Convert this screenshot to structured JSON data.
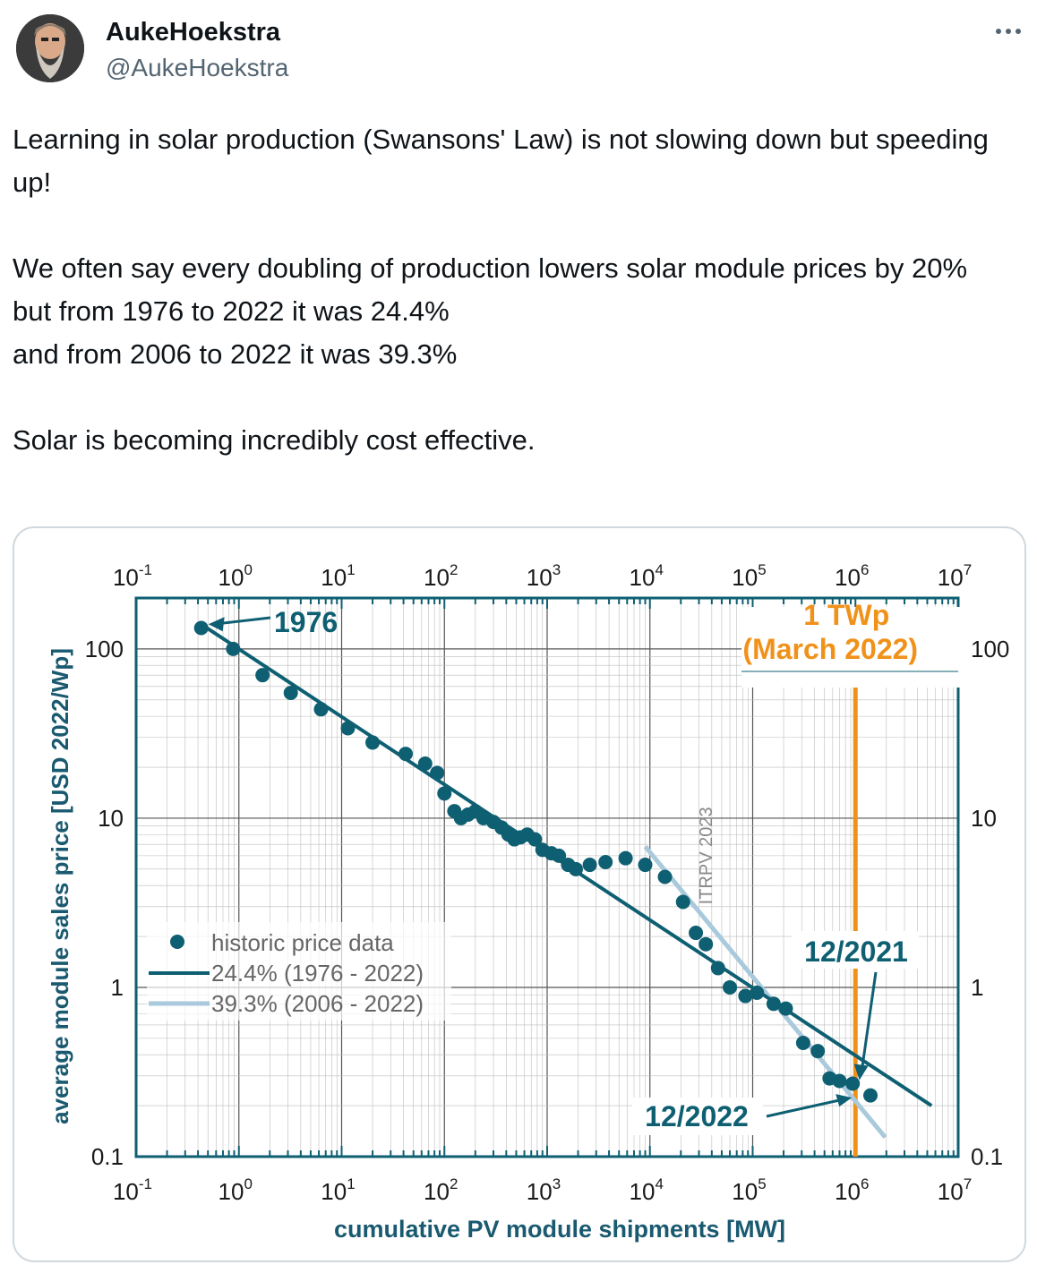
{
  "tweet": {
    "author_name": "AukeHoekstra",
    "author_handle": "@AukeHoekstra",
    "more_icon": "more-horizontal-icon",
    "paragraphs": [
      "Learning in solar production (Swansons' Law) is not slowing down but speeding up!",
      "We often say every doubling of production lowers solar module prices by 20%",
      "but from 1976 to 2022 it was 24.4%",
      "and from 2006 to 2022 it was 39.3%",
      "Solar is becoming incredibly cost effective."
    ]
  },
  "colors": {
    "teal": "#0e5f72",
    "light_blue": "#a9c9dc",
    "orange": "#f0921a",
    "grid": "#bdbdbd",
    "axis_text": "#1a5a70"
  },
  "chart_data": {
    "type": "scatter",
    "xscale": "log",
    "yscale": "log",
    "xlim": [
      0.1,
      10000000
    ],
    "ylim": [
      0.1,
      200
    ],
    "xlabel": "cumulative PV module shipments [MW]",
    "ylabel": "average module sales price [USD 2022/Wp]",
    "x_tick_labels": [
      {
        "base": "10",
        "exp": "-1"
      },
      {
        "base": "10",
        "exp": "0"
      },
      {
        "base": "10",
        "exp": "1"
      },
      {
        "base": "10",
        "exp": "2"
      },
      {
        "base": "10",
        "exp": "3"
      },
      {
        "base": "10",
        "exp": "4"
      },
      {
        "base": "10",
        "exp": "5"
      },
      {
        "base": "10",
        "exp": "6"
      },
      {
        "base": "10",
        "exp": "7"
      }
    ],
    "y_tick_labels": [
      "100",
      "10",
      "1",
      "0.1"
    ],
    "watermark": "ITRPV 2023",
    "legend": [
      {
        "label": "historic price data",
        "kind": "marker"
      },
      {
        "label": "24.4% (1976 - 2022)",
        "kind": "line"
      },
      {
        "label": "39.3% (2006 - 2022)",
        "kind": "line-light"
      }
    ],
    "series": [
      {
        "name": "historic price data",
        "points": [
          [
            0.43,
            133
          ],
          [
            0.88,
            100
          ],
          [
            1.7,
            70
          ],
          [
            3.2,
            55
          ],
          [
            6.3,
            44
          ],
          [
            11.5,
            34
          ],
          [
            20,
            28
          ],
          [
            42,
            24
          ],
          [
            65,
            21
          ],
          [
            85,
            18.5
          ],
          [
            100,
            14
          ],
          [
            125,
            11
          ],
          [
            145,
            10
          ],
          [
            170,
            10.5
          ],
          [
            200,
            11
          ],
          [
            240,
            10
          ],
          [
            300,
            9.5
          ],
          [
            360,
            8.8
          ],
          [
            420,
            8
          ],
          [
            480,
            7.5
          ],
          [
            550,
            7.7
          ],
          [
            640,
            8
          ],
          [
            760,
            7.5
          ],
          [
            900,
            6.5
          ],
          [
            1100,
            6.2
          ],
          [
            1300,
            6
          ],
          [
            1600,
            5.3
          ],
          [
            1900,
            5
          ],
          [
            2600,
            5.3
          ],
          [
            3700,
            5.5
          ],
          [
            5800,
            5.8
          ],
          [
            9000,
            5.3
          ],
          [
            14000,
            4.5
          ],
          [
            21000,
            3.2
          ],
          [
            28000,
            2.1
          ],
          [
            35000,
            1.8
          ],
          [
            46000,
            1.3
          ],
          [
            60000,
            1.0
          ],
          [
            85000,
            0.89
          ],
          [
            110000,
            0.93
          ],
          [
            160000,
            0.8
          ],
          [
            210000,
            0.75
          ],
          [
            310000,
            0.47
          ],
          [
            430000,
            0.42
          ],
          [
            560000,
            0.29
          ],
          [
            700000,
            0.28
          ],
          [
            940000,
            0.27
          ],
          [
            1400000,
            0.23
          ]
        ]
      },
      {
        "name": "24.4% (1976 - 2022)",
        "points": [
          [
            0.43,
            140
          ],
          [
            5500000,
            0.2
          ]
        ]
      },
      {
        "name": "39.3% (2006 - 2022)",
        "points": [
          [
            9000,
            6.8
          ],
          [
            1950000,
            0.13
          ]
        ]
      }
    ],
    "annotations": [
      {
        "text": "1976",
        "target": [
          0.43,
          140
        ]
      },
      {
        "text": "12/2021",
        "target": [
          1050000,
          0.27
        ]
      },
      {
        "text": "12/2022",
        "target": [
          1000000,
          0.24
        ]
      }
    ],
    "vertical_marker": {
      "x": 1000000,
      "label_line1": "1 TWp",
      "label_line2": "(March 2022)"
    }
  }
}
